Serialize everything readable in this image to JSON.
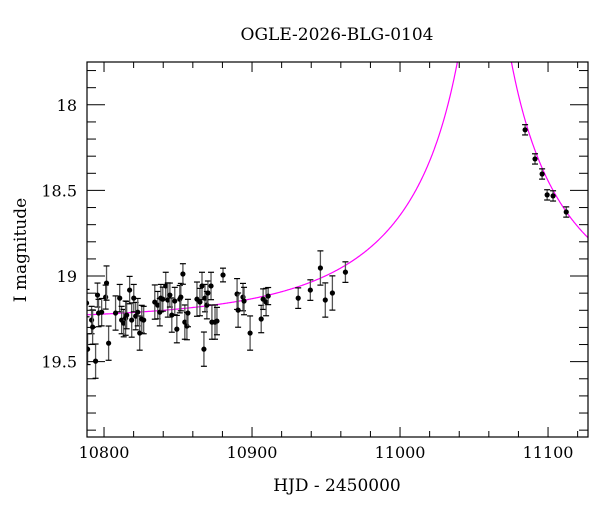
{
  "chart_data": {
    "type": "scatter",
    "title": "OGLE-2026-BLG-0104",
    "xlabel": "HJD - 2450000",
    "ylabel": "I magnitude",
    "xlim": [
      10788.5,
      11127
    ],
    "ylim": [
      19.94,
      17.75
    ],
    "y_inverted": true,
    "grid": false,
    "x_ticks": [
      10800,
      10900,
      11000,
      11100
    ],
    "x_tick_labels": [
      "10800",
      "10900",
      "11000",
      "11100"
    ],
    "x_minor_step": 20,
    "y_ticks": [
      18,
      18.5,
      19,
      19.5
    ],
    "y_tick_labels": [
      "18",
      "18.5",
      "19",
      "19.5"
    ],
    "y_minor_step": 0.1,
    "colors": {
      "points": "#000000",
      "error_bars": "#000000",
      "model": "#ff00ff"
    },
    "data": {
      "x": [
        10785.3,
        10786.2,
        10786.8,
        10788.2,
        10788.9,
        10791.6,
        10792.3,
        10794.3,
        10795.6,
        10796.3,
        10798.4,
        10801.1,
        10801.7,
        10803.1,
        10807.8,
        10810.6,
        10811.9,
        10813.3,
        10814.6,
        10815.3,
        10817.3,
        10818.7,
        10820.1,
        10821.4,
        10822.8,
        10824.1,
        10825.5,
        10826.8,
        10834.3,
        10836.3,
        10837.7,
        10838.4,
        10839.7,
        10841.7,
        10843.1,
        10844.5,
        10845.8,
        10847.8,
        10849.2,
        10851.2,
        10851.9,
        10853.3,
        10854.6,
        10856.0,
        10856.7,
        10862.8,
        10864.8,
        10866.2,
        10867.5,
        10868.2,
        10869.5,
        10870.2,
        10872.3,
        10872.9,
        10875.0,
        10876.3,
        10880.4,
        10889.9,
        10890.6,
        10893.9,
        10894.6,
        10898.7,
        10906.2,
        10907.5,
        10909.5,
        10910.9,
        10931.2,
        10939.4,
        10946.2,
        10949.5,
        10954.3,
        10963.1,
        11084.5,
        11091.2,
        11096.0,
        11099.4,
        11103.4,
        11112.3
      ],
      "y": [
        19.117,
        19.287,
        19.135,
        19.158,
        19.427,
        19.257,
        19.298,
        19.497,
        19.111,
        19.216,
        19.211,
        19.123,
        19.041,
        19.392,
        19.216,
        19.129,
        19.257,
        19.275,
        19.246,
        19.228,
        19.082,
        19.257,
        19.129,
        19.234,
        19.211,
        19.333,
        19.251,
        19.257,
        19.152,
        19.17,
        19.211,
        19.129,
        19.135,
        19.058,
        19.14,
        19.111,
        19.228,
        19.146,
        19.31,
        19.135,
        19.123,
        18.988,
        19.269,
        19.292,
        19.216,
        19.135,
        19.152,
        19.058,
        19.427,
        19.129,
        19.17,
        19.099,
        19.058,
        19.269,
        19.269,
        19.263,
        18.994,
        19.105,
        19.199,
        19.123,
        19.146,
        19.333,
        19.251,
        19.135,
        19.152,
        19.117,
        19.129,
        19.082,
        18.953,
        19.14,
        19.099,
        18.977,
        18.146,
        18.316,
        18.404,
        18.526,
        18.532,
        18.626
      ],
      "yerr": [
        0.08,
        0.1,
        0.07,
        0.08,
        0.09,
        0.08,
        0.1,
        0.1,
        0.07,
        0.08,
        0.08,
        0.07,
        0.1,
        0.1,
        0.1,
        0.08,
        0.08,
        0.08,
        0.1,
        0.08,
        0.08,
        0.1,
        0.08,
        0.08,
        0.08,
        0.1,
        0.08,
        0.08,
        0.1,
        0.08,
        0.08,
        0.08,
        0.07,
        0.08,
        0.1,
        0.07,
        0.1,
        0.08,
        0.08,
        0.08,
        0.08,
        0.06,
        0.1,
        0.08,
        0.08,
        0.1,
        0.08,
        0.08,
        0.1,
        0.08,
        0.08,
        0.07,
        0.08,
        0.1,
        0.1,
        0.08,
        0.04,
        0.09,
        0.1,
        0.08,
        0.08,
        0.1,
        0.08,
        0.06,
        0.08,
        0.05,
        0.06,
        0.06,
        0.1,
        0.1,
        0.1,
        0.06,
        0.03,
        0.03,
        0.03,
        0.03,
        0.03,
        0.03
      ]
    },
    "model": {
      "name": "",
      "t0": 11057,
      "tE": 136,
      "u0": 0.05,
      "fs": 0.5,
      "baseline": 19.26
    }
  }
}
